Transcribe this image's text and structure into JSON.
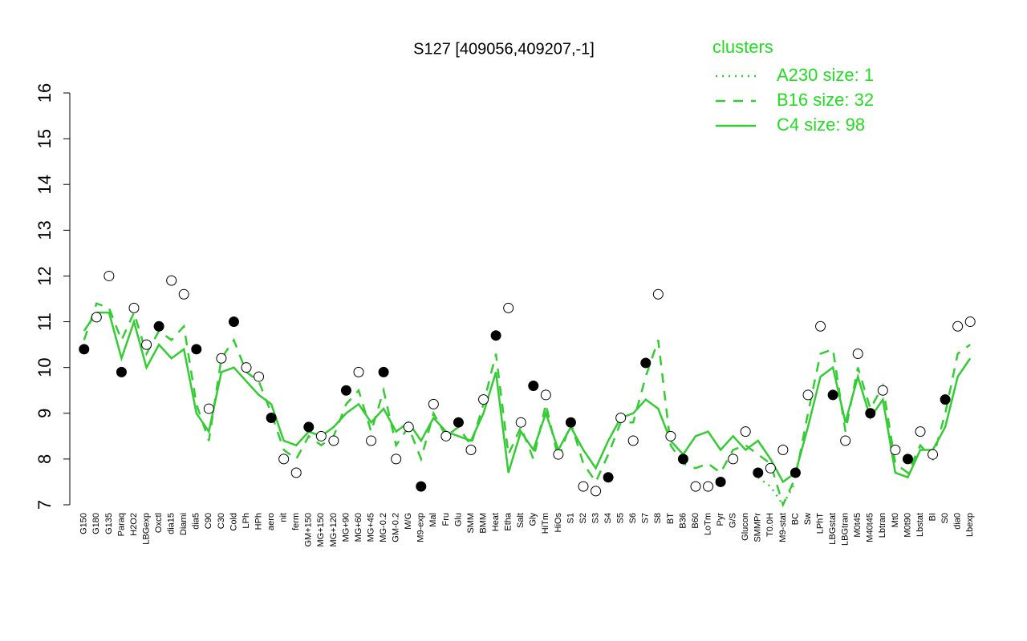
{
  "chart_data": {
    "type": "line",
    "title": "S127 [409056,409207,-1]",
    "legend_title": "clusters",
    "legend_position": "top-right",
    "categories": [
      "G150",
      "G180",
      "G135",
      "Paraq",
      "H2O2",
      "LBGexp",
      "Oxctl",
      "dia15",
      "Diami",
      "dia5",
      "C90",
      "C30",
      "Cold",
      "LPh",
      "HPh",
      "aero",
      "nit",
      "ferm",
      "GM+150",
      "MG+150",
      "MG+120",
      "MG+90",
      "MG+60",
      "MG+45",
      "MG-0.2",
      "GM-0.2",
      "M/G",
      "M9-exp",
      "Mal",
      "Fru",
      "Glu",
      "SMM",
      "BMM",
      "Heat",
      "Etha",
      "Salt",
      "Gly",
      "HiTm",
      "HiOs",
      "S1",
      "S2",
      "S3",
      "S4",
      "S5",
      "S6",
      "S7",
      "S8",
      "BT",
      "B36",
      "B60",
      "LoTm",
      "Pyr",
      "G/S",
      "Glucon",
      "SMMPr",
      "T0.0H",
      "M9-stat",
      "BC",
      "Sw",
      "LPhT",
      "LBGstat",
      "LBGtran",
      "M0t45",
      "M40t45",
      "Lbtran",
      "Mt0",
      "M0t90",
      "Lbstat",
      "BI",
      "S0",
      "dia0",
      "Lbexp"
    ],
    "points": [
      10.4,
      11.1,
      12.0,
      9.9,
      11.3,
      10.5,
      10.9,
      11.9,
      11.6,
      10.4,
      9.1,
      10.2,
      11.0,
      10.0,
      9.8,
      8.9,
      8.0,
      7.7,
      8.7,
      8.5,
      8.4,
      9.5,
      9.9,
      8.4,
      9.9,
      8.0,
      8.7,
      7.4,
      9.2,
      8.5,
      8.8,
      8.2,
      9.3,
      10.7,
      11.3,
      8.8,
      9.6,
      9.4,
      8.1,
      8.8,
      7.4,
      7.3,
      7.6,
      8.9,
      8.4,
      10.1,
      11.6,
      8.5,
      8.0,
      7.4,
      7.4,
      7.5,
      8.0,
      8.6,
      7.7,
      7.8,
      8.2,
      7.7,
      9.4,
      10.9,
      9.4,
      8.4,
      10.3,
      9.0,
      9.5,
      8.2,
      8.0,
      8.6,
      8.1,
      9.3,
      10.9,
      11.0
    ],
    "series": [
      {
        "name": "A230 size: 1",
        "color": "#33cc33",
        "dash": "dotted",
        "values": [
          null,
          null,
          null,
          null,
          null,
          null,
          null,
          null,
          null,
          null,
          null,
          null,
          null,
          null,
          null,
          null,
          null,
          null,
          null,
          null,
          null,
          null,
          null,
          null,
          null,
          null,
          null,
          null,
          null,
          null,
          null,
          null,
          null,
          null,
          null,
          null,
          null,
          null,
          null,
          null,
          null,
          null,
          null,
          null,
          null,
          null,
          null,
          null,
          null,
          null,
          null,
          null,
          null,
          null,
          7.6,
          7.4,
          7.0,
          7.5,
          null,
          null,
          null,
          null,
          null,
          null,
          null,
          null,
          null,
          null,
          null,
          null,
          null,
          null
        ]
      },
      {
        "name": "B16 size: 32",
        "color": "#33cc33",
        "dash": "dashed",
        "values": [
          10.6,
          11.4,
          11.3,
          10.6,
          11.2,
          10.3,
          10.8,
          10.6,
          10.9,
          9.2,
          8.4,
          10.2,
          10.6,
          9.9,
          9.7,
          9.0,
          8.2,
          8.0,
          8.5,
          8.3,
          8.5,
          9.2,
          9.5,
          8.6,
          9.5,
          8.3,
          8.7,
          8.0,
          9.0,
          8.5,
          8.7,
          8.3,
          9.2,
          10.3,
          8.1,
          8.7,
          8.0,
          9.2,
          8.0,
          8.8,
          7.9,
          7.5,
          8.1,
          8.8,
          8.8,
          9.8,
          10.6,
          8.3,
          7.9,
          7.8,
          7.9,
          7.7,
          8.2,
          8.3,
          8.1,
          7.9,
          7.0,
          7.6,
          9.0,
          10.3,
          10.4,
          8.6,
          10.0,
          9.1,
          9.6,
          7.9,
          7.7,
          8.3,
          8.0,
          9.0,
          10.3,
          10.5
        ]
      },
      {
        "name": "C4 size: 98",
        "color": "#33cc33",
        "dash": "solid",
        "values": [
          10.8,
          11.2,
          11.2,
          10.2,
          11.0,
          10.0,
          10.5,
          10.2,
          10.4,
          9.0,
          8.6,
          9.9,
          10.0,
          9.7,
          9.4,
          9.2,
          8.4,
          8.3,
          8.6,
          8.5,
          8.7,
          9.0,
          9.2,
          8.8,
          9.1,
          8.6,
          8.8,
          8.4,
          8.9,
          8.6,
          8.5,
          8.4,
          9.0,
          9.9,
          7.7,
          8.6,
          8.2,
          9.0,
          8.2,
          8.7,
          8.2,
          7.8,
          8.4,
          8.9,
          9.0,
          9.3,
          9.1,
          8.4,
          8.1,
          8.5,
          8.6,
          8.2,
          8.5,
          8.2,
          8.4,
          8.0,
          7.5,
          7.7,
          8.7,
          9.8,
          10.0,
          8.8,
          9.8,
          8.9,
          9.3,
          7.7,
          7.6,
          8.2,
          8.2,
          8.7,
          9.8,
          10.2
        ]
      }
    ],
    "ylim": [
      7,
      16
    ],
    "yticks": [
      7,
      8,
      9,
      10,
      11,
      12,
      13,
      14,
      15,
      16
    ]
  }
}
